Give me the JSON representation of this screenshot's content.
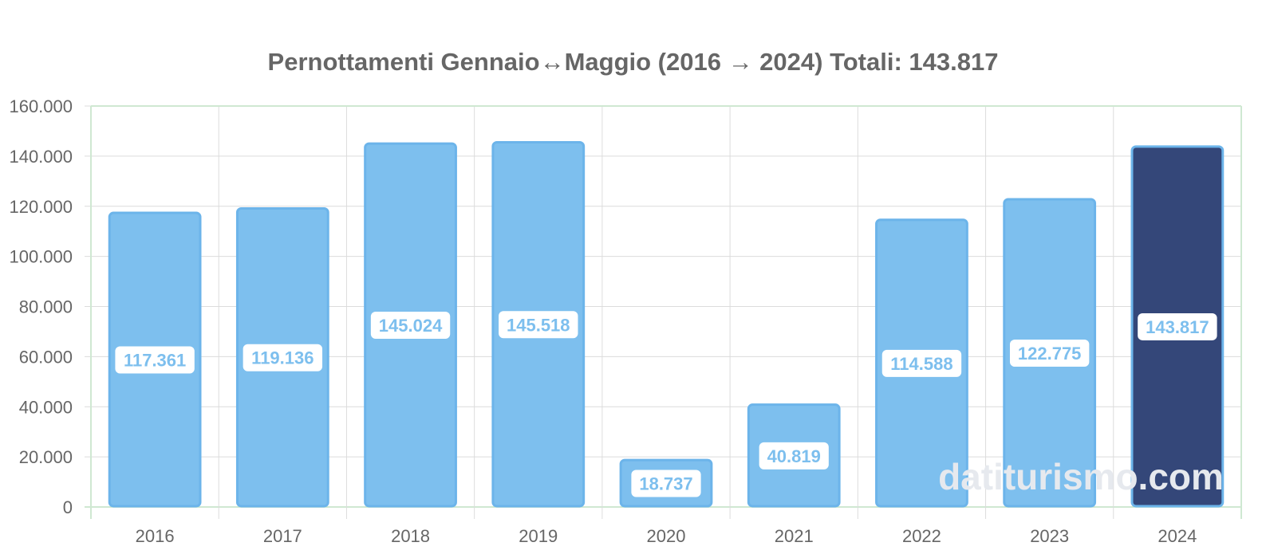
{
  "chart_data": {
    "type": "bar",
    "title": "Pernottamenti Gennaio↔Maggio (2016 → 2024) Totali: 143.817",
    "categories": [
      "2016",
      "2017",
      "2018",
      "2019",
      "2020",
      "2021",
      "2022",
      "2023",
      "2024"
    ],
    "values": [
      117361,
      119136,
      145024,
      145518,
      18737,
      40819,
      114588,
      122775,
      143817
    ],
    "value_labels": [
      "117.361",
      "119.136",
      "145.024",
      "145.518",
      "18.737",
      "40.819",
      "114.588",
      "122.775",
      "143.817"
    ],
    "ylim": [
      0,
      160000
    ],
    "y_ticks": [
      0,
      20000,
      40000,
      60000,
      80000,
      100000,
      120000,
      140000,
      160000
    ],
    "y_tick_labels": [
      "0",
      "20.000",
      "40.000",
      "60.000",
      "80.000",
      "100.000",
      "120.000",
      "140.000",
      "160.000"
    ],
    "xlabel": "",
    "ylabel": "",
    "grid": true,
    "highlight_index": 8,
    "colors": {
      "bar": "#7dbfee",
      "bar_border": "#6cb4ea",
      "highlight": "#344779",
      "highlight_border": "#6cb4ea",
      "label_text": "#7dbfee",
      "label_bg": "#ffffff",
      "grid": "#dcdcdc",
      "axis": "#cfe8d2",
      "tick_text": "#666666"
    }
  },
  "watermark": "datiturismo.com"
}
